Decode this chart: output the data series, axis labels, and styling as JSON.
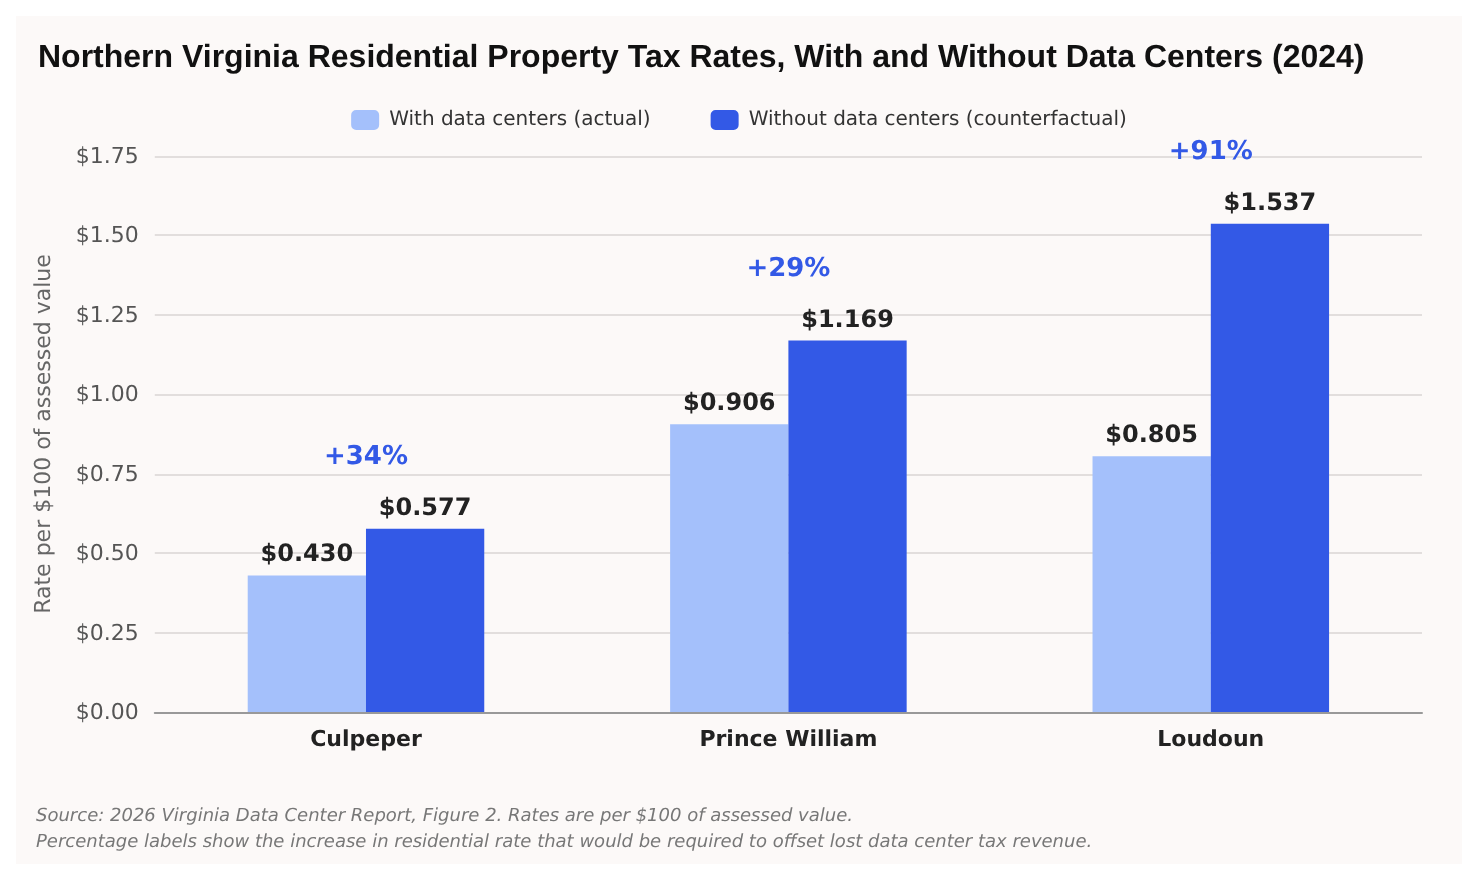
{
  "chart_data": {
    "type": "bar",
    "title": "Northern Virginia Residential Property Tax Rates, With and Without Data Centers (2024)",
    "ylabel": "Rate per $100 of assessed value",
    "categories": [
      "Culpeper",
      "Prince William",
      "Loudoun"
    ],
    "series": [
      {
        "name": "With data centers (actual)",
        "color": "#a4c0fb",
        "values": [
          0.43,
          0.906,
          0.805
        ],
        "value_labels": [
          "$0.430",
          "$0.906",
          "$0.805"
        ]
      },
      {
        "name": "Without data centers (counterfactual)",
        "color": "#3359e6",
        "values": [
          0.577,
          1.169,
          1.537
        ],
        "value_labels": [
          "$0.577",
          "$1.169",
          "$1.537"
        ]
      }
    ],
    "ylim": [
      0,
      1.75
    ],
    "yticks": [
      {
        "value": 0,
        "label": "$0.00"
      },
      {
        "value": 0.25,
        "label": "$0.25"
      },
      {
        "value": 0.5,
        "label": "$0.50"
      },
      {
        "value": 0.75,
        "label": "$0.75"
      },
      {
        "value": 1,
        "label": "$1.00"
      },
      {
        "value": 1.25,
        "label": "$1.25"
      },
      {
        "value": 1.5,
        "label": "$1.50"
      },
      {
        "value": 1.75,
        "label": "$1.75"
      }
    ],
    "grid": "y",
    "legend": "top",
    "annotations": [
      "+34%",
      "+29%",
      "+91%",
      "Source: 2026 Virginia Data Center Report, Figure 2. Rates are per $100 of assessed value.",
      "Percentage labels show the increase in residential rate that would be required to offset lost data center tax revenue."
    ]
  }
}
